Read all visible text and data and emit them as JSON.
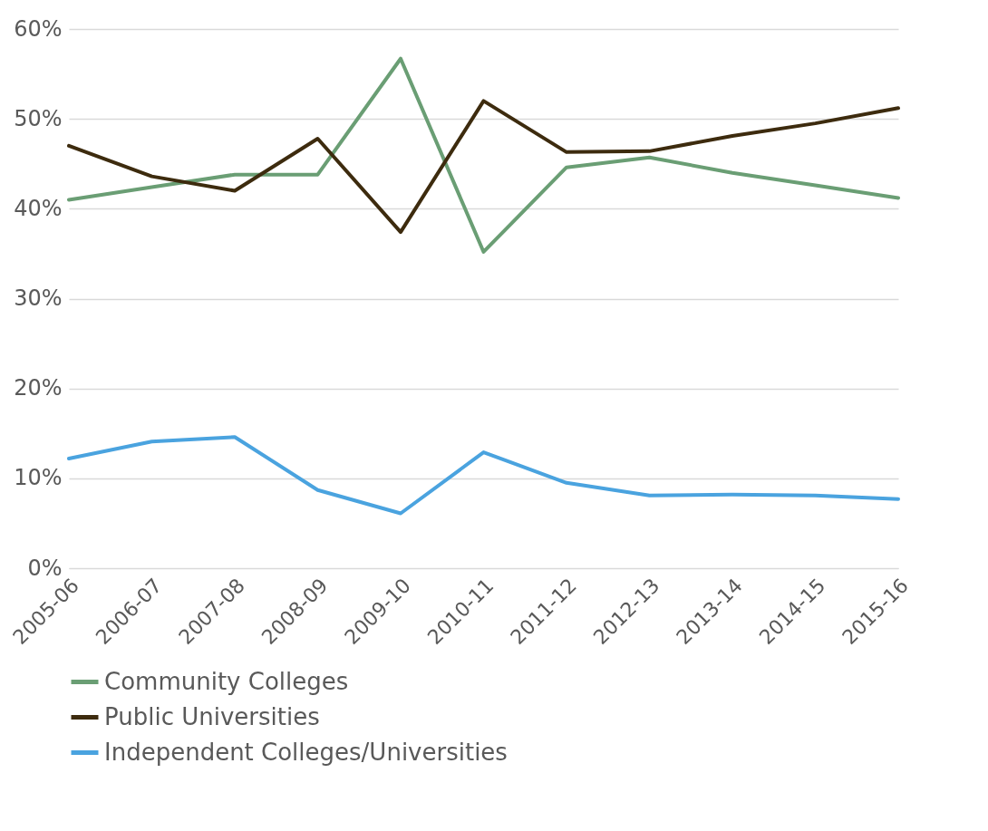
{
  "chart_data": {
    "type": "line",
    "categories": [
      "2005-06",
      "2006-07",
      "2007-08",
      "2008-09",
      "2009-10",
      "2010-11",
      "2011-12",
      "2012-13",
      "2013-14",
      "2014-15",
      "2015-16"
    ],
    "series": [
      {
        "name": "Community Colleges",
        "color": "#6a9e74",
        "values": [
          41.0,
          42.4,
          43.8,
          43.8,
          56.7,
          35.2,
          44.6,
          45.7,
          44.0,
          42.6,
          41.2
        ]
      },
      {
        "name": "Public Universities",
        "color": "#3d2b0e",
        "values": [
          47.0,
          43.6,
          42.0,
          47.8,
          37.4,
          52.0,
          46.3,
          46.4,
          48.1,
          49.5,
          51.2
        ]
      },
      {
        "name": "Independent Colleges/Universities",
        "color": "#4aa3df",
        "values": [
          12.2,
          14.1,
          14.6,
          8.7,
          6.1,
          12.9,
          9.5,
          8.1,
          8.2,
          8.1,
          7.7
        ]
      }
    ],
    "ylim": [
      0,
      60
    ],
    "yticks": [
      {
        "value": 0,
        "label": "0%"
      },
      {
        "value": 10,
        "label": "10%"
      },
      {
        "value": 20,
        "label": "20%"
      },
      {
        "value": 30,
        "label": "30%"
      },
      {
        "value": 40,
        "label": "40%"
      },
      {
        "value": 50,
        "label": "50%"
      },
      {
        "value": 60,
        "label": "60%"
      }
    ],
    "grid": "y",
    "legend": "bottom",
    "marker": "none",
    "line_style": "solid"
  }
}
